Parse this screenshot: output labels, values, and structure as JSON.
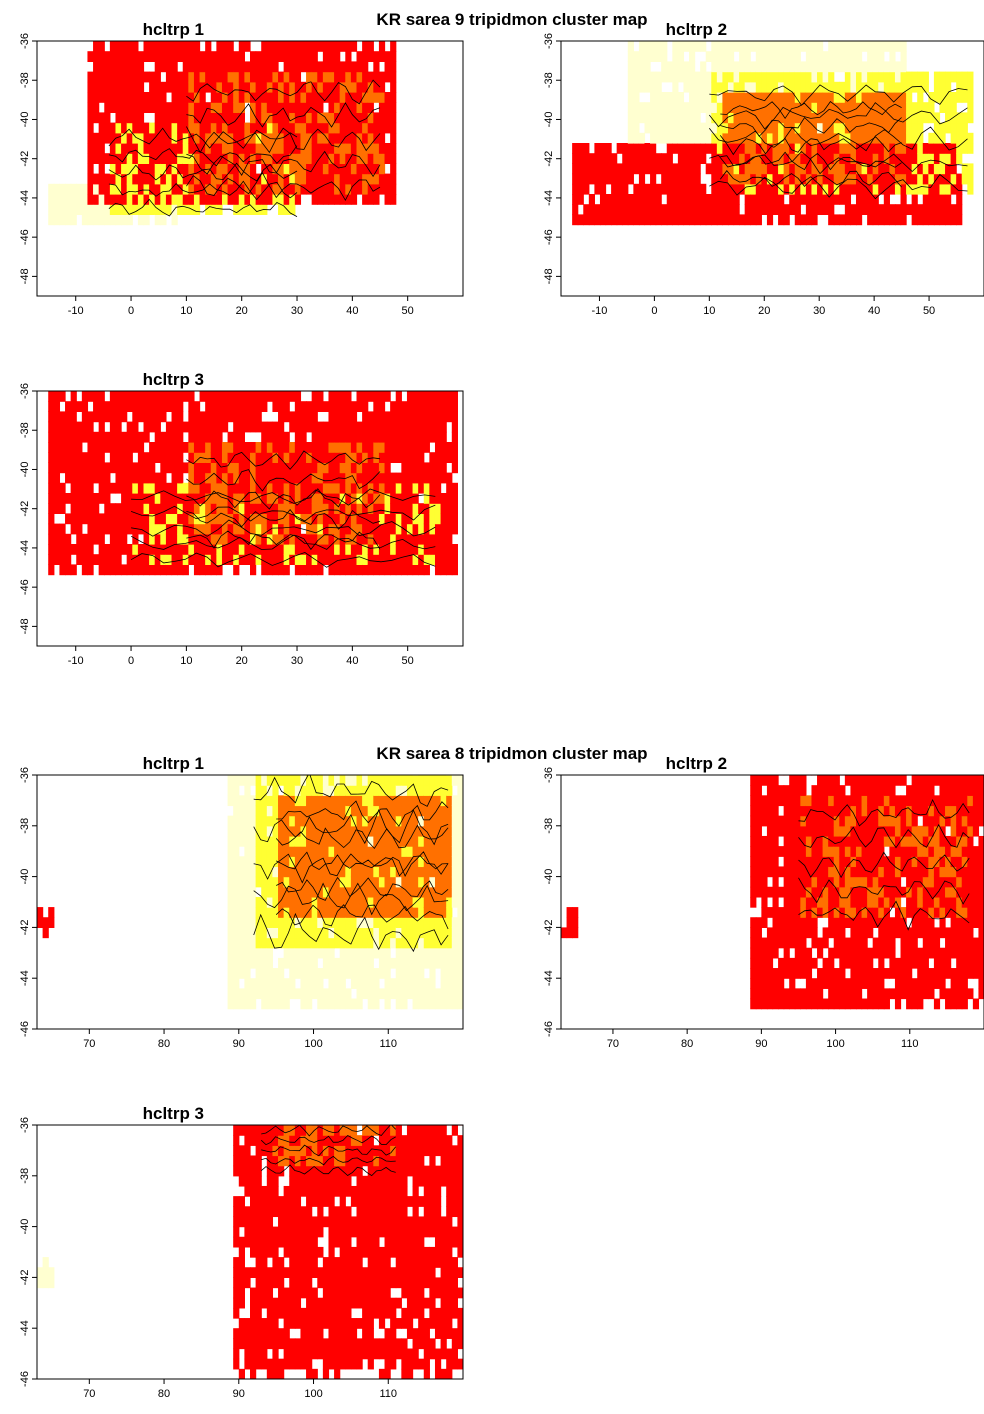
{
  "figures": [
    {
      "title": "KR sarea 9 tripidmon cluster map",
      "panel_titles": [
        "hcltrp 1",
        "hcltrp 2",
        "hcltrp 3"
      ]
    },
    {
      "title": "KR sarea 8 tripidmon cluster map",
      "panel_titles": [
        "hcltrp 1",
        "hcltrp 2",
        "hcltrp 3"
      ]
    }
  ],
  "colors": {
    "low": "#ffffd0",
    "mid_low": "#ffff33",
    "mid": "#ffc000",
    "mid_high": "#ff7000",
    "high": "#ff0000",
    "contour": "#000000"
  },
  "chart_data": [
    {
      "type": "heatmap",
      "title": "hcltrp 1",
      "group": "KR sarea 9 tripidmon cluster map",
      "x_ticks": [
        -10,
        0,
        10,
        20,
        30,
        40,
        50
      ],
      "y_ticks": [
        -36,
        -38,
        -40,
        -42,
        -44,
        -46,
        -48
      ],
      "xlim": [
        -17,
        60
      ],
      "ylim": [
        -49,
        -36
      ],
      "dominant": "mixed",
      "regions": [
        {
          "x": [
            -8,
            47
          ],
          "y": [
            -44.5,
            -36
          ],
          "level": "high"
        },
        {
          "x": [
            -15,
            8
          ],
          "y": [
            -45.5,
            -43.5
          ],
          "level": "low"
        },
        {
          "x": [
            -4,
            30
          ],
          "y": [
            -45,
            -40.5
          ],
          "level": "mid_low"
        },
        {
          "x": [
            10,
            45
          ],
          "y": [
            -44,
            -38
          ],
          "level": "mid_high"
        }
      ]
    },
    {
      "type": "heatmap",
      "title": "hcltrp 2",
      "group": "KR sarea 9 tripidmon cluster map",
      "x_ticks": [
        -10,
        0,
        10,
        20,
        30,
        40,
        50
      ],
      "y_ticks": [
        -36,
        -38,
        -40,
        -42,
        -44,
        -46,
        -48
      ],
      "xlim": [
        -17,
        60
      ],
      "ylim": [
        -49,
        -36
      ],
      "dominant": "mixed",
      "regions": [
        {
          "x": [
            -15,
            55
          ],
          "y": [
            -45.5,
            -41.5
          ],
          "level": "high"
        },
        {
          "x": [
            -5,
            45
          ],
          "y": [
            -41.5,
            -36
          ],
          "level": "low"
        },
        {
          "x": [
            10,
            57
          ],
          "y": [
            -44,
            -38
          ],
          "level": "mid_low"
        },
        {
          "x": [
            12,
            45
          ],
          "y": [
            -43.5,
            -39
          ],
          "level": "mid_high"
        }
      ]
    },
    {
      "type": "heatmap",
      "title": "hcltrp 3",
      "group": "KR sarea 9 tripidmon cluster map",
      "x_ticks": [
        -10,
        0,
        10,
        20,
        30,
        40,
        50
      ],
      "y_ticks": [
        -36,
        -38,
        -40,
        -42,
        -44,
        -46,
        -48
      ],
      "xlim": [
        -17,
        60
      ],
      "ylim": [
        -49,
        -36
      ],
      "dominant": "high",
      "regions": [
        {
          "x": [
            -15,
            58
          ],
          "y": [
            -45.5,
            -36
          ],
          "level": "high"
        },
        {
          "x": [
            0,
            55
          ],
          "y": [
            -45,
            -41
          ],
          "level": "mid_low"
        },
        {
          "x": [
            10,
            45
          ],
          "y": [
            -44,
            -39
          ],
          "level": "mid_high"
        }
      ]
    },
    {
      "type": "heatmap",
      "title": "hcltrp 1",
      "group": "KR sarea 8 tripidmon cluster map",
      "x_ticks": [
        70,
        80,
        90,
        100,
        110
      ],
      "y_ticks": [
        -36,
        -38,
        -40,
        -42,
        -44,
        -46
      ],
      "xlim": [
        63,
        120
      ],
      "ylim": [
        -46,
        -36
      ],
      "dominant": "low",
      "regions": [
        {
          "x": [
            88,
            120
          ],
          "y": [
            -45.5,
            -36
          ],
          "level": "low"
        },
        {
          "x": [
            92,
            118
          ],
          "y": [
            -43,
            -36
          ],
          "level": "mid_low"
        },
        {
          "x": [
            95,
            118
          ],
          "y": [
            -42,
            -37
          ],
          "level": "mid_high"
        },
        {
          "x": [
            63,
            65
          ],
          "y": [
            -42.5,
            -41.5
          ],
          "level": "high"
        }
      ]
    },
    {
      "type": "heatmap",
      "title": "hcltrp 2",
      "group": "KR sarea 8 tripidmon cluster map",
      "x_ticks": [
        70,
        80,
        90,
        100,
        110
      ],
      "y_ticks": [
        -36,
        -38,
        -40,
        -42,
        -44,
        -46
      ],
      "xlim": [
        63,
        120
      ],
      "ylim": [
        -46,
        -36
      ],
      "dominant": "high",
      "regions": [
        {
          "x": [
            88,
            120
          ],
          "y": [
            -45.5,
            -36
          ],
          "level": "high"
        },
        {
          "x": [
            95,
            118
          ],
          "y": [
            -42,
            -37
          ],
          "level": "mid_high"
        },
        {
          "x": [
            63,
            65
          ],
          "y": [
            -42.5,
            -41.5
          ],
          "level": "high"
        }
      ]
    },
    {
      "type": "heatmap",
      "title": "hcltrp 3",
      "group": "KR sarea 8 tripidmon cluster map",
      "x_ticks": [
        70,
        80,
        90,
        100,
        110
      ],
      "y_ticks": [
        -36,
        -38,
        -40,
        -42,
        -44,
        -46
      ],
      "xlim": [
        63,
        120
      ],
      "ylim": [
        -46,
        -36
      ],
      "dominant": "high",
      "regions": [
        {
          "x": [
            89,
            120
          ],
          "y": [
            -46,
            -36
          ],
          "level": "high"
        },
        {
          "x": [
            93,
            111
          ],
          "y": [
            -38,
            -36
          ],
          "level": "mid_high"
        },
        {
          "x": [
            63,
            65
          ],
          "y": [
            -42.5,
            -41.5
          ],
          "level": "low"
        }
      ]
    }
  ]
}
